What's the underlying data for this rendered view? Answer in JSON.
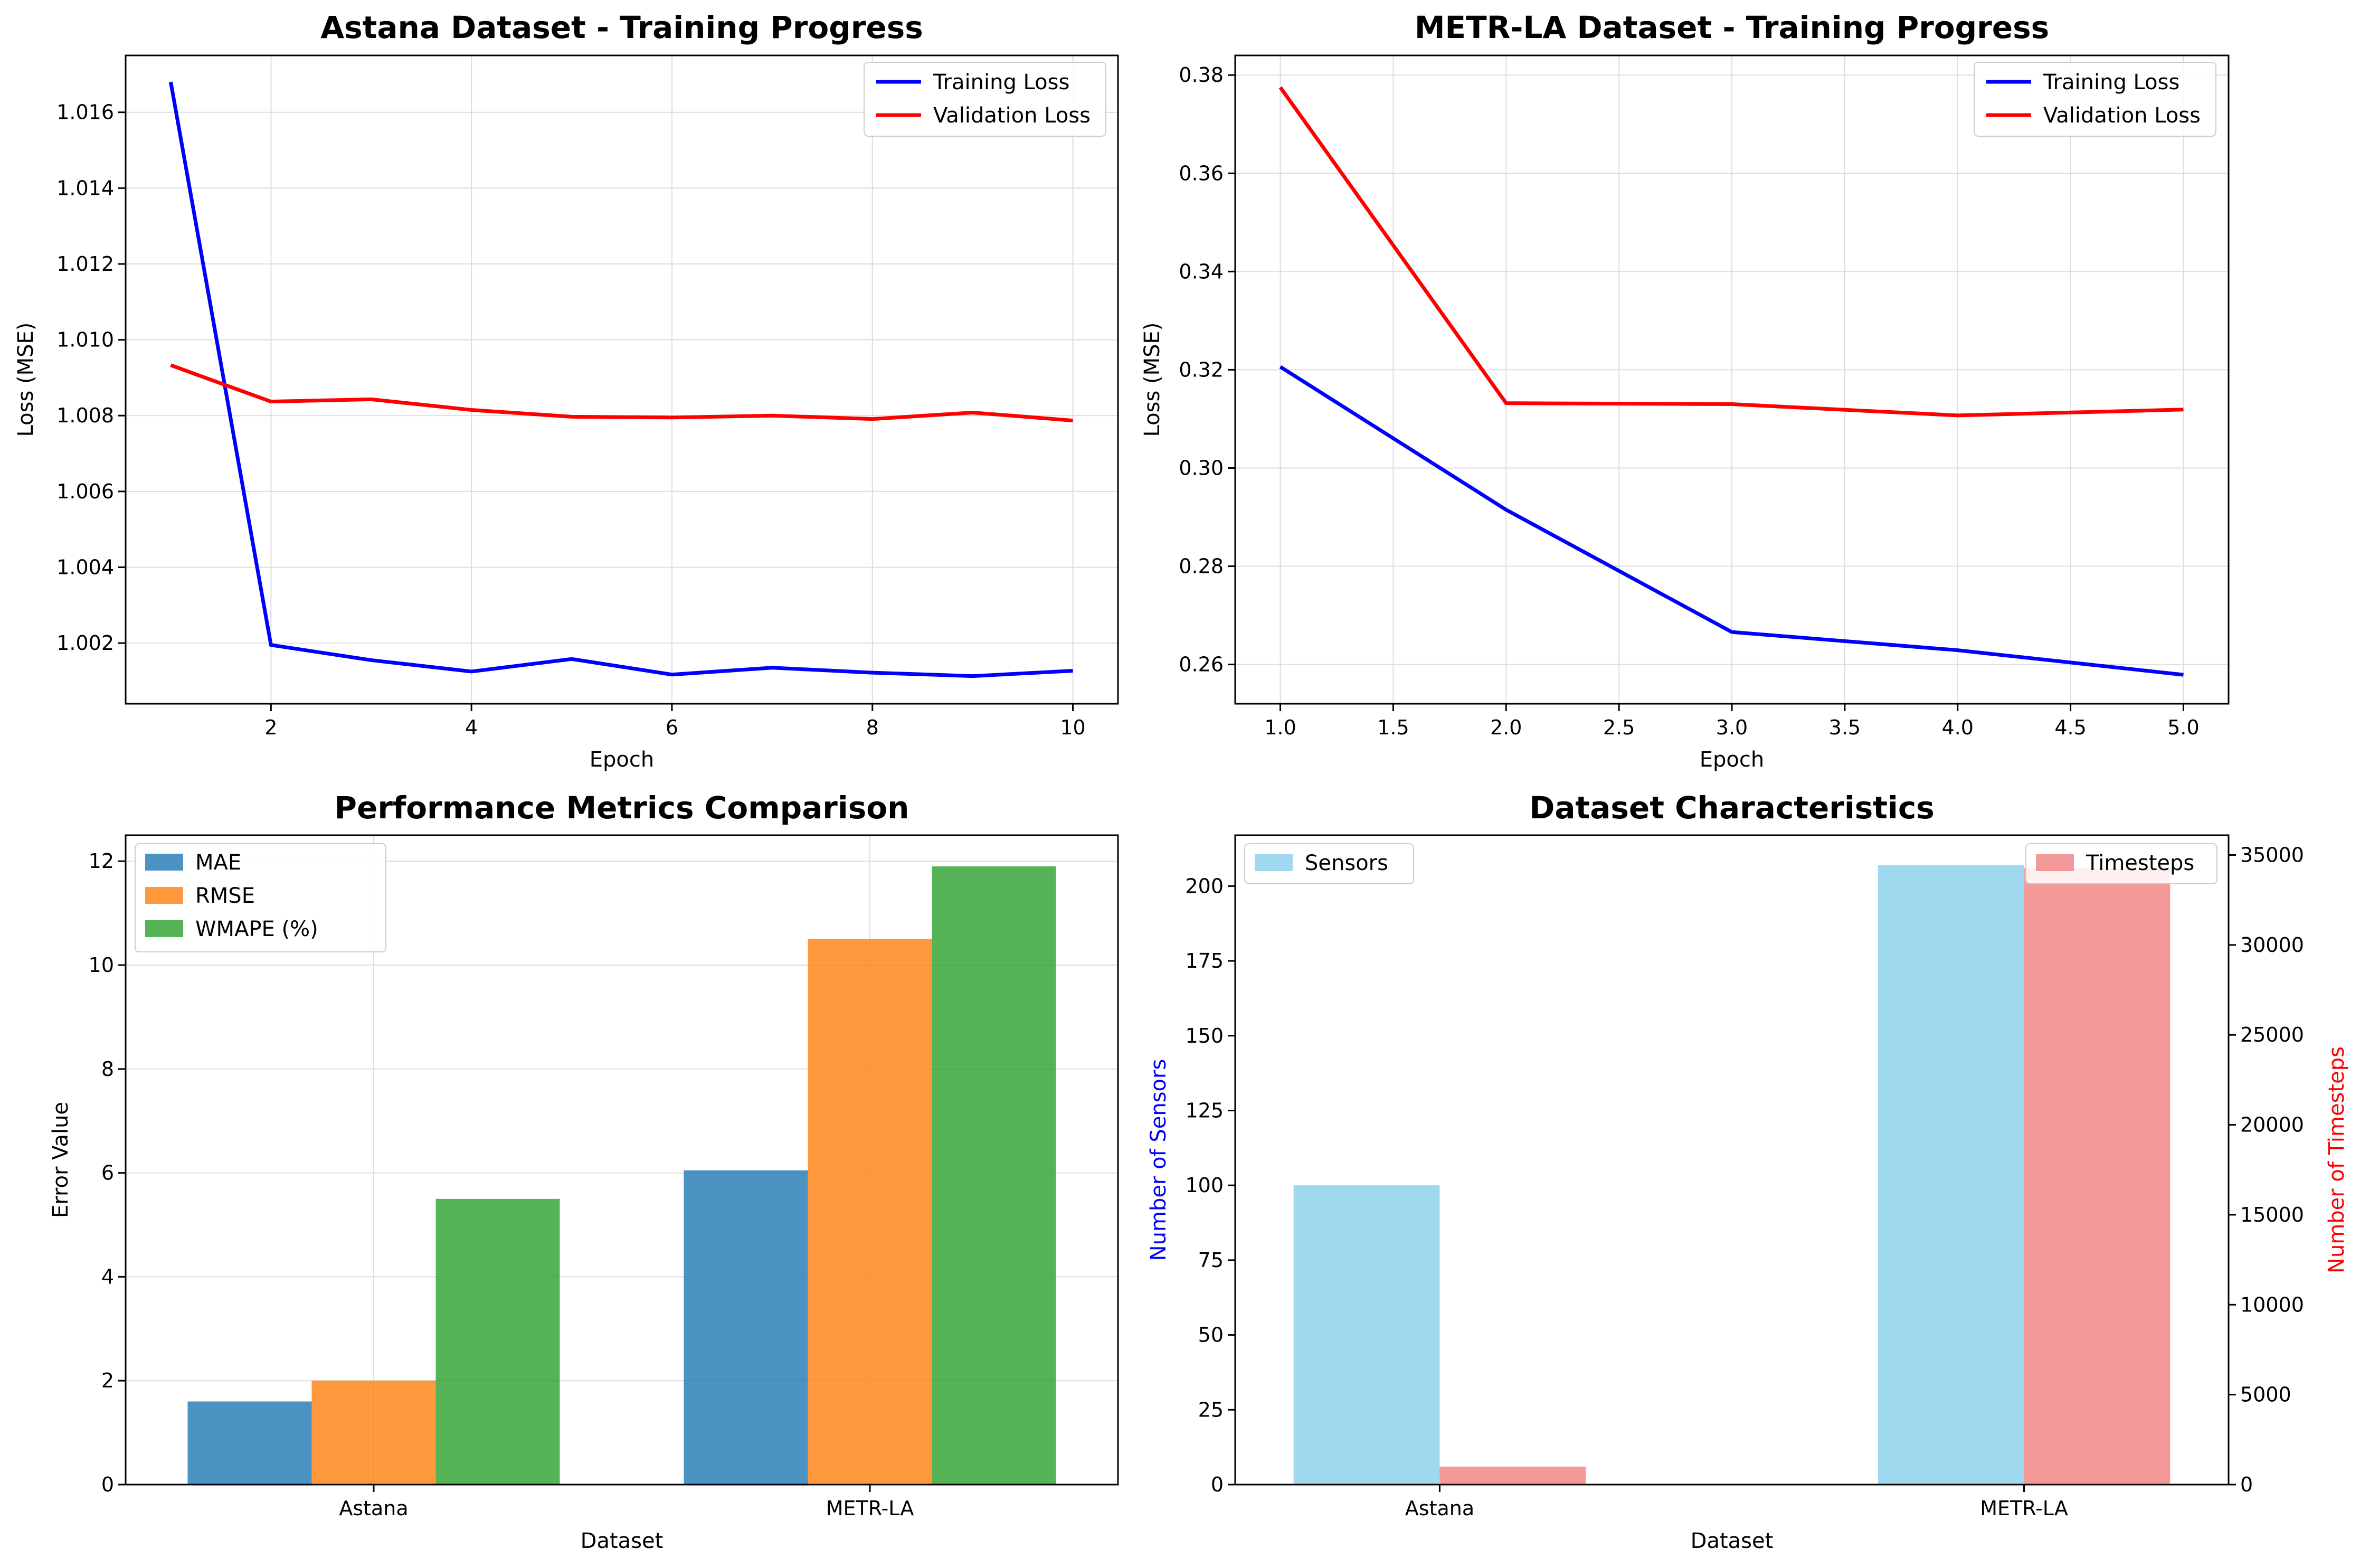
{
  "colors": {
    "training": "#0000ff",
    "validation": "#ff0000",
    "mae": "#1f77b4",
    "rmse": "#ff7f0e",
    "wmape": "#2ca02c",
    "sensors": "#87ceeb",
    "timesteps": "#f08080",
    "grid": "#dddddd"
  },
  "chart_data": [
    {
      "type": "line",
      "title": "Astana Dataset - Training Progress",
      "xlabel": "Epoch",
      "ylabel": "Loss (MSE)",
      "x": [
        1,
        2,
        3,
        4,
        5,
        6,
        7,
        8,
        9,
        10
      ],
      "xlim": [
        0.55,
        10.45
      ],
      "ylim": [
        1.0004,
        1.0175
      ],
      "xticks": [
        2,
        4,
        6,
        8,
        10
      ],
      "yticks": [
        1.002,
        1.004,
        1.006,
        1.008,
        1.01,
        1.012,
        1.014,
        1.016
      ],
      "xtick_labels": [
        "2",
        "4",
        "6",
        "8",
        "10"
      ],
      "ytick_labels": [
        "1.002",
        "1.004",
        "1.006",
        "1.008",
        "1.010",
        "1.012",
        "1.014",
        "1.016"
      ],
      "grid": true,
      "legend": "upper-right",
      "series": [
        {
          "name": "Training Loss",
          "color_key": "training",
          "values": [
            1.0168,
            1.00195,
            1.00155,
            1.00125,
            1.00158,
            1.00117,
            1.00135,
            1.00122,
            1.00113,
            1.00127
          ]
        },
        {
          "name": "Validation Loss",
          "color_key": "validation",
          "values": [
            1.00933,
            1.00837,
            1.00843,
            1.00815,
            1.00797,
            1.00795,
            1.008,
            1.00791,
            1.00808,
            1.00787
          ]
        }
      ]
    },
    {
      "type": "line",
      "title": "METR-LA Dataset - Training Progress",
      "xlabel": "Epoch",
      "ylabel": "Loss (MSE)",
      "x": [
        1,
        2,
        3,
        4,
        5
      ],
      "xlim": [
        0.8,
        5.2
      ],
      "ylim": [
        0.252,
        0.384
      ],
      "xticks": [
        1,
        1.5,
        2,
        2.5,
        3,
        3.5,
        4,
        4.5,
        5
      ],
      "yticks": [
        0.26,
        0.28,
        0.3,
        0.32,
        0.34,
        0.36,
        0.38
      ],
      "xtick_labels": [
        "1.0",
        "1.5",
        "2.0",
        "2.5",
        "3.0",
        "3.5",
        "4.0",
        "4.5",
        "5.0"
      ],
      "ytick_labels": [
        "0.26",
        "0.28",
        "0.30",
        "0.32",
        "0.34",
        "0.36",
        "0.38"
      ],
      "grid": true,
      "legend": "upper-right",
      "series": [
        {
          "name": "Training Loss",
          "color_key": "training",
          "values": [
            0.3206,
            0.2915,
            0.2666,
            0.2629,
            0.2579
          ]
        },
        {
          "name": "Validation Loss",
          "color_key": "validation",
          "values": [
            0.3775,
            0.3132,
            0.313,
            0.3107,
            0.3119
          ]
        }
      ]
    },
    {
      "type": "bar",
      "title": "Performance Metrics Comparison",
      "xlabel": "Dataset",
      "ylabel": "Error Value",
      "categories": [
        "Astana",
        "METR-LA"
      ],
      "ylim": [
        0,
        12.5
      ],
      "yticks": [
        0,
        2,
        4,
        6,
        8,
        10,
        12
      ],
      "ytick_labels": [
        "0",
        "2",
        "4",
        "6",
        "8",
        "10",
        "12"
      ],
      "grid": true,
      "legend": "upper-left",
      "series": [
        {
          "name": "MAE",
          "color_key": "mae",
          "values": [
            1.6,
            6.05
          ]
        },
        {
          "name": "RMSE",
          "color_key": "rmse",
          "values": [
            2.0,
            10.5
          ]
        },
        {
          "name": "WMAPE (%)",
          "color_key": "wmape",
          "values": [
            5.5,
            11.9
          ]
        }
      ]
    },
    {
      "type": "bar",
      "title": "Dataset Characteristics",
      "xlabel": "Dataset",
      "ylabel": "Number of Sensors",
      "y2label": "Number of Timesteps",
      "categories": [
        "Astana",
        "METR-LA"
      ],
      "ylim": [
        0,
        217
      ],
      "y2lim": [
        0,
        36100
      ],
      "yticks": [
        0,
        25,
        50,
        75,
        100,
        125,
        150,
        175,
        200
      ],
      "ytick_labels": [
        "0",
        "25",
        "50",
        "75",
        "100",
        "125",
        "150",
        "175",
        "200"
      ],
      "y2ticks": [
        0,
        5000,
        10000,
        15000,
        20000,
        25000,
        30000,
        35000
      ],
      "y2tick_labels": [
        "0",
        "5000",
        "10000",
        "15000",
        "20000",
        "25000",
        "30000",
        "35000"
      ],
      "grid": false,
      "legend": [
        "upper-left",
        "upper-right"
      ],
      "series": [
        {
          "name": "Sensors",
          "axis": "left",
          "color_key": "sensors",
          "values": [
            100,
            207
          ]
        },
        {
          "name": "Timesteps",
          "axis": "right",
          "color_key": "timesteps",
          "values": [
            1000,
            34272
          ]
        }
      ]
    }
  ]
}
